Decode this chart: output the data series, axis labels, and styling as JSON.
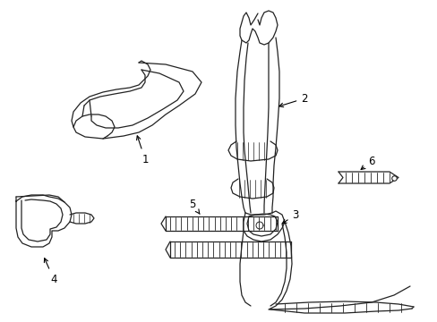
{
  "background_color": "#ffffff",
  "line_color": "#222222",
  "label_color": "#000000",
  "fig_width": 4.89,
  "fig_height": 3.6,
  "dpi": 100
}
